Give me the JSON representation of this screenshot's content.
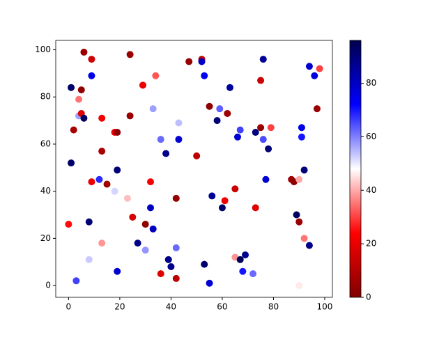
{
  "chart_data": {
    "type": "scatter",
    "colormap": "seismic_r",
    "x": [
      6,
      9,
      24,
      9,
      1,
      5,
      4,
      4,
      5,
      6,
      2,
      13,
      18,
      19,
      13,
      1,
      12,
      9,
      15,
      19,
      18,
      23,
      0,
      8,
      13,
      8,
      3,
      19,
      25,
      27,
      30,
      30,
      32,
      33,
      32,
      24,
      29,
      34,
      33,
      36,
      38,
      43,
      43,
      42,
      36,
      39,
      40,
      42,
      42,
      47,
      52,
      52,
      53,
      55,
      50,
      56,
      55,
      53,
      58,
      59,
      62,
      63,
      61,
      60,
      65,
      66,
      67,
      65,
      67,
      68,
      69,
      72,
      73,
      73,
      75,
      75,
      76,
      76,
      77,
      78,
      79,
      87,
      88,
      89,
      90,
      90,
      90,
      91,
      91,
      92,
      92,
      94,
      94,
      96,
      97,
      98
    ],
    "y": [
      99,
      96,
      98,
      89,
      84,
      83,
      79,
      72,
      73,
      71,
      66,
      71,
      65,
      65,
      57,
      52,
      45,
      44,
      43,
      49,
      40,
      37,
      26,
      27,
      18,
      11,
      2,
      6,
      29,
      18,
      26,
      15,
      33,
      24,
      44,
      72,
      85,
      89,
      75,
      62,
      56,
      62,
      69,
      37,
      5,
      11,
      8,
      16,
      3,
      95,
      96,
      95,
      89,
      76,
      55,
      38,
      1,
      9,
      70,
      75,
      73,
      84,
      36,
      33,
      41,
      63,
      66,
      12,
      11,
      6,
      13,
      5,
      33,
      65,
      67,
      87,
      62,
      96,
      45,
      58,
      67,
      45,
      44,
      30,
      45,
      27,
      0,
      67,
      63,
      49,
      20,
      93,
      17,
      89,
      75,
      92
    ],
    "c": [
      5,
      15,
      5,
      75,
      92,
      3,
      35,
      57,
      18,
      93,
      8,
      22,
      22,
      3,
      8,
      92,
      68,
      20,
      6,
      90,
      52,
      42,
      25,
      90,
      38,
      53,
      66,
      78,
      17,
      88,
      3,
      58,
      80,
      80,
      22,
      5,
      20,
      32,
      57,
      62,
      88,
      78,
      54,
      4,
      18,
      88,
      87,
      62,
      12,
      4,
      12,
      80,
      73,
      3,
      12,
      86,
      78,
      92,
      90,
      63,
      6,
      85,
      22,
      92,
      14,
      78,
      66,
      38,
      94,
      70,
      87,
      62,
      18,
      90,
      5,
      14,
      65,
      86,
      78,
      90,
      30,
      6,
      3,
      93,
      40,
      5,
      46,
      75,
      70,
      90,
      35,
      78,
      88,
      76,
      5,
      30
    ],
    "xlim": [
      -5,
      103
    ],
    "ylim": [
      -5,
      104
    ],
    "clim": [
      0,
      96
    ],
    "xticks": [
      0,
      20,
      40,
      60,
      80,
      100
    ],
    "yticks": [
      0,
      20,
      40,
      60,
      80,
      100
    ],
    "cticks": [
      0,
      20,
      40,
      60,
      80
    ]
  }
}
